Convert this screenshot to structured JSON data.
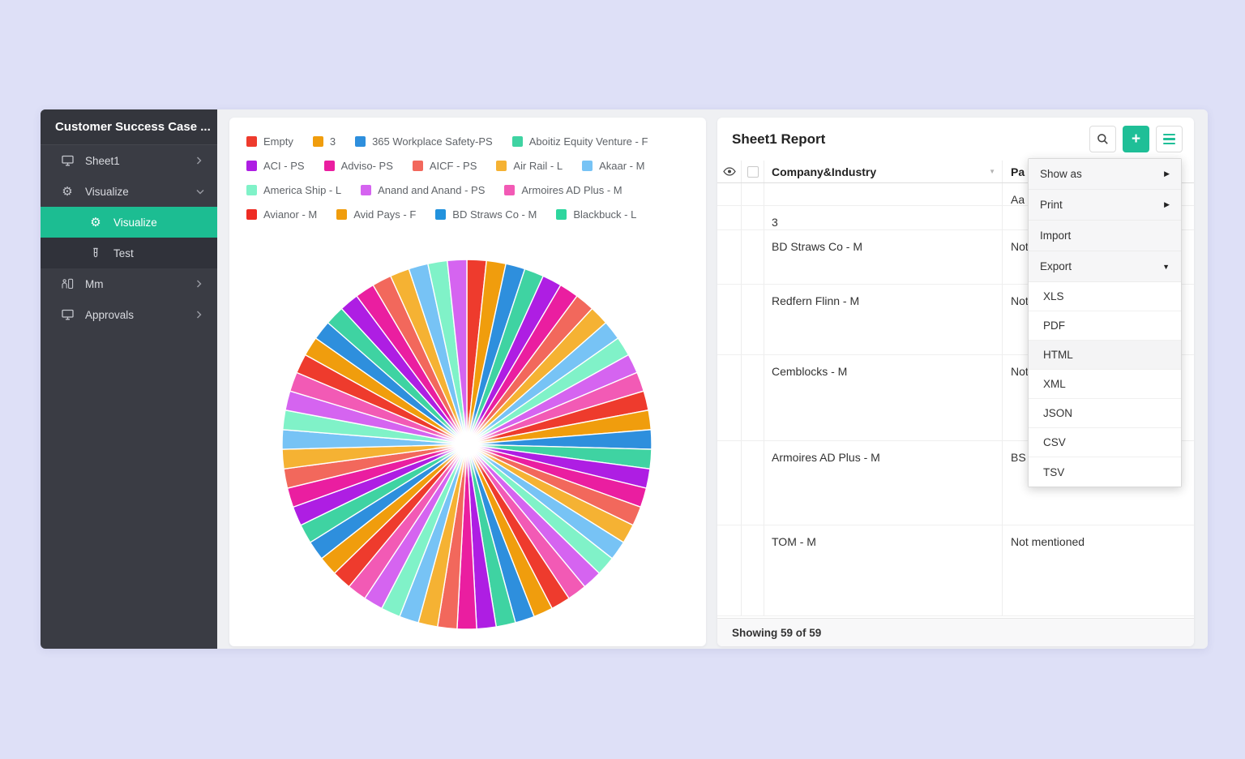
{
  "colors": {
    "page_bg": "#dee0f7",
    "card_bg": "#eff0f3",
    "sidebar_bg": "#3a3c44",
    "sidebar_sub_bg": "#30323a",
    "accent_green": "#1fbf97",
    "selected_green": "#1cbd92"
  },
  "sidebar": {
    "title": "Customer Success Case ...",
    "items": [
      {
        "label": "Sheet1",
        "icon": "monitor-icon",
        "chevron": "right",
        "sub": false,
        "selected": false
      },
      {
        "label": "Visualize",
        "icon": "gear-icon",
        "chevron": "down",
        "sub": false,
        "selected": false
      },
      {
        "label": "Visualize",
        "icon": "gear-icon",
        "chevron": "",
        "sub": true,
        "selected": true
      },
      {
        "label": "Test",
        "icon": "test-tube-icon",
        "chevron": "",
        "sub": true,
        "selected": false
      },
      {
        "label": "Mm",
        "icon": "people-icon",
        "chevron": "right",
        "sub": false,
        "selected": false
      },
      {
        "label": "Approvals",
        "icon": "monitor-icon",
        "chevron": "right",
        "sub": false,
        "selected": false
      }
    ]
  },
  "chart_data": {
    "type": "pie",
    "title": "",
    "slice_count": 59,
    "equal_slices": true,
    "palette": [
      "#ee3b2d",
      "#f09d0d",
      "#2e8fdd",
      "#3fd3a2",
      "#ae1ee3",
      "#ea1ea0",
      "#f2685c",
      "#f5b233",
      "#77c3f5",
      "#80f2c8",
      "#d564f0",
      "#f25ab5"
    ],
    "legend_position": "top",
    "legend": [
      {
        "label": "Empty",
        "color": "#ee3b2d"
      },
      {
        "label": "3",
        "color": "#f09d0d"
      },
      {
        "label": "365 Workplace Safety-PS",
        "color": "#2e8fdd"
      },
      {
        "label": "Aboitiz Equity Venture - F",
        "color": "#3fd3a2"
      },
      {
        "label": "ACI - PS",
        "color": "#ae1ee3"
      },
      {
        "label": "Adviso- PS",
        "color": "#ea1ea0"
      },
      {
        "label": "AICF - PS",
        "color": "#f2685c"
      },
      {
        "label": "Air Rail - L",
        "color": "#f5b233"
      },
      {
        "label": "Akaar - M",
        "color": "#77c3f5"
      },
      {
        "label": "America Ship - L",
        "color": "#80f2c8"
      },
      {
        "label": "Anand and Anand - PS",
        "color": "#d564f0"
      },
      {
        "label": "Armoires AD Plus - M",
        "color": "#f25ab5"
      },
      {
        "label": "Avianor - M",
        "color": "#ee2c24"
      },
      {
        "label": "Avid Pays - F",
        "color": "#f09d0d"
      },
      {
        "label": "BD Straws Co - M",
        "color": "#2292dd"
      },
      {
        "label": "Blackbuck - L",
        "color": "#2ed69e"
      }
    ]
  },
  "report": {
    "title": "Sheet1 Report",
    "toolbar": [
      {
        "icon": "search-icon"
      },
      {
        "icon": "plus-icon"
      },
      {
        "icon": "hamburger-menu-icon"
      }
    ],
    "table": {
      "columns": [
        "Company&Industry",
        "Pa"
      ],
      "rows": [
        {
          "company": "",
          "value": "Aa"
        },
        {
          "company": "3",
          "value": ""
        },
        {
          "company": "BD Straws Co - M",
          "value": "Not mentioned"
        },
        {
          "company": "Redfern Flinn - M",
          "value": "Not mentioned"
        },
        {
          "company": "Cemblocks - M",
          "value": "Not mentioned"
        },
        {
          "company": "Armoires AD Plus - M",
          "value": "BS"
        },
        {
          "company": "TOM - M",
          "value": "Not mentioned"
        }
      ]
    },
    "footer": "Showing 59 of 59"
  },
  "menu": {
    "main_items": [
      {
        "label": "Show as",
        "caret": "right"
      },
      {
        "label": "Print",
        "caret": "right"
      },
      {
        "label": "Import",
        "caret": ""
      },
      {
        "label": "Export",
        "caret": "down"
      }
    ],
    "export_options": [
      "XLS",
      "PDF",
      "HTML",
      "XML",
      "JSON",
      "CSV",
      "TSV"
    ],
    "highlighted_option": "HTML"
  }
}
